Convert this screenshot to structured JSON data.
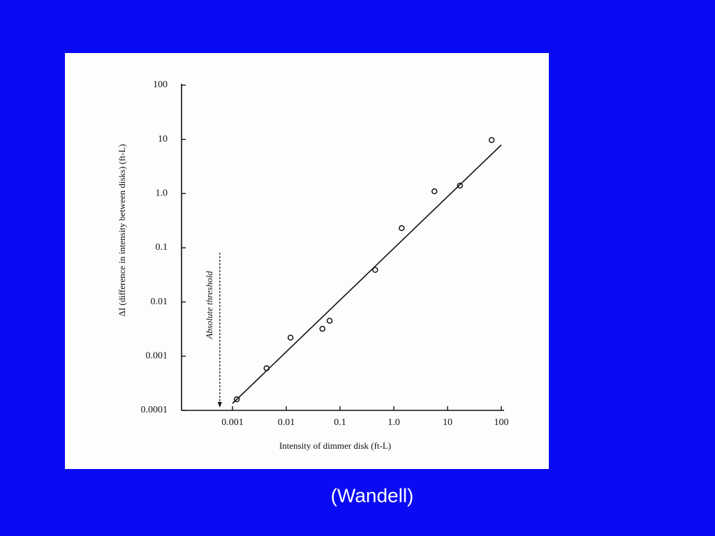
{
  "chart_data": {
    "type": "scatter",
    "x_label": "Intensity of dimmer disk (ft-L)",
    "y_label": "ΔI (difference in intensity between disks) (ft-L)",
    "xscale": "log",
    "yscale": "log",
    "xlim": [
      0.0001,
      100
    ],
    "ylim": [
      0.0001,
      100
    ],
    "xticks": [
      0.001,
      0.01,
      0.1,
      {
        "value": 1,
        "label": "1.0"
      },
      10,
      100
    ],
    "yticks": [
      100,
      10,
      {
        "value": 1,
        "label": "1.0"
      },
      0.1,
      0.01,
      0.001,
      0.0001
    ],
    "series": [
      {
        "color": "#111111",
        "x": [
          0.0012,
          0.0043,
          0.012,
          0.047,
          0.064,
          0.45,
          1.4,
          5.7,
          17,
          66
        ],
        "y": [
          0.00016,
          0.0006,
          0.0022,
          0.0032,
          0.0045,
          0.039,
          0.23,
          1.1,
          1.4,
          9.7
        ]
      }
    ],
    "fit": {
      "x": [
        0.001,
        100
      ],
      "y": [
        0.000134,
        7.9
      ]
    },
    "annotation": {
      "text": "Absolute threshold",
      "x": 0.00058
    },
    "source": "(Wandell)"
  }
}
